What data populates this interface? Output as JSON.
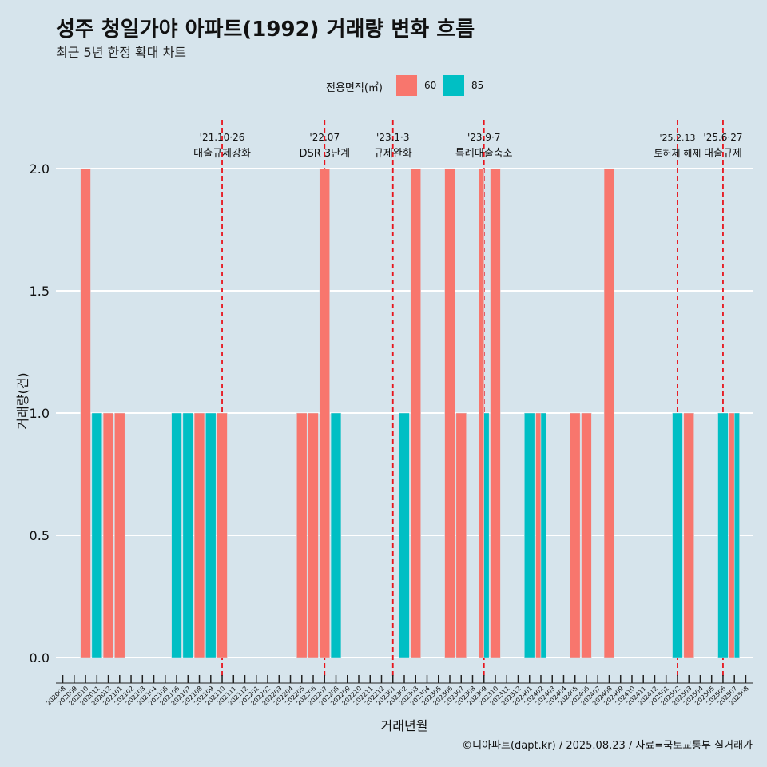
{
  "title": "성주 청일가야 아파트(1992) 거래량 변화 흐름",
  "subtitle": "최근 5년 한정 확대 차트",
  "legend": {
    "title": "전용면적(㎡)",
    "items": [
      {
        "label": "60",
        "color": "#F8766D"
      },
      {
        "label": "85",
        "color": "#00BFC4"
      }
    ]
  },
  "caption": "©디아파트(dapt.kr) / 2025.08.23 / 자료=국토교통부 실거래가",
  "chart_data": {
    "type": "bar",
    "xlabel": "거래년월",
    "ylabel": "거래량(건)",
    "ylim": [
      0,
      2.0
    ],
    "yticks": [
      "0.0",
      "0.5",
      "1.0",
      "1.5",
      "2.0"
    ],
    "categories": [
      "202008",
      "202009",
      "202010",
      "202011",
      "202012",
      "202101",
      "202102",
      "202103",
      "202104",
      "202105",
      "202106",
      "202107",
      "202108",
      "202109",
      "202110",
      "202111",
      "202112",
      "202201",
      "202202",
      "202203",
      "202204",
      "202205",
      "202206",
      "202207",
      "202208",
      "202209",
      "202210",
      "202211",
      "202212",
      "202301",
      "202302",
      "202303",
      "202304",
      "202305",
      "202306",
      "202307",
      "202308",
      "202309",
      "202310",
      "202311",
      "202312",
      "202401",
      "202402",
      "202403",
      "202404",
      "202405",
      "202406",
      "202407",
      "202408",
      "202409",
      "202410",
      "202411",
      "202412",
      "202501",
      "202502",
      "202503",
      "202504",
      "202505",
      "202506",
      "202507",
      "202508"
    ],
    "series": [
      {
        "name": "60",
        "color": "#F8766D",
        "points": [
          {
            "x": "202010",
            "y": 2
          },
          {
            "x": "202012",
            "y": 1
          },
          {
            "x": "202101",
            "y": 1
          },
          {
            "x": "202108",
            "y": 1
          },
          {
            "x": "202110",
            "y": 1
          },
          {
            "x": "202205",
            "y": 1
          },
          {
            "x": "202206",
            "y": 1
          },
          {
            "x": "202207",
            "y": 2
          },
          {
            "x": "202303",
            "y": 2
          },
          {
            "x": "202306",
            "y": 2
          },
          {
            "x": "202307",
            "y": 1
          },
          {
            "x": "202309",
            "y": 2
          },
          {
            "x": "202310",
            "y": 2
          },
          {
            "x": "202402",
            "y": 1
          },
          {
            "x": "202405",
            "y": 1
          },
          {
            "x": "202406",
            "y": 1
          },
          {
            "x": "202408",
            "y": 2
          },
          {
            "x": "202503",
            "y": 1
          },
          {
            "x": "202507",
            "y": 1
          }
        ]
      },
      {
        "name": "85",
        "color": "#00BFC4",
        "points": [
          {
            "x": "202011",
            "y": 1
          },
          {
            "x": "202106",
            "y": 1
          },
          {
            "x": "202107",
            "y": 1
          },
          {
            "x": "202109",
            "y": 1
          },
          {
            "x": "202208",
            "y": 1
          },
          {
            "x": "202302",
            "y": 1
          },
          {
            "x": "202309",
            "y": 1
          },
          {
            "x": "202401",
            "y": 1
          },
          {
            "x": "202402",
            "y": 1
          },
          {
            "x": "202502",
            "y": 1
          },
          {
            "x": "202506",
            "y": 1
          },
          {
            "x": "202507",
            "y": 1
          }
        ]
      }
    ],
    "annotations": [
      {
        "x": "202110",
        "date": "'21.10·26",
        "text": "대출규제강화"
      },
      {
        "x": "202207",
        "date": "'22.07",
        "text": "DSR 3단계"
      },
      {
        "x": "202301",
        "date": "'23.1·3",
        "text": "규제완화"
      },
      {
        "x": "202309",
        "date": "'23.9·7",
        "text": "특례대출축소"
      },
      {
        "x": "202502",
        "date": "'25.2.13",
        "text": "토허제 해제"
      },
      {
        "x": "202506",
        "date": "'25.6·27",
        "text": "대출규제"
      }
    ]
  }
}
